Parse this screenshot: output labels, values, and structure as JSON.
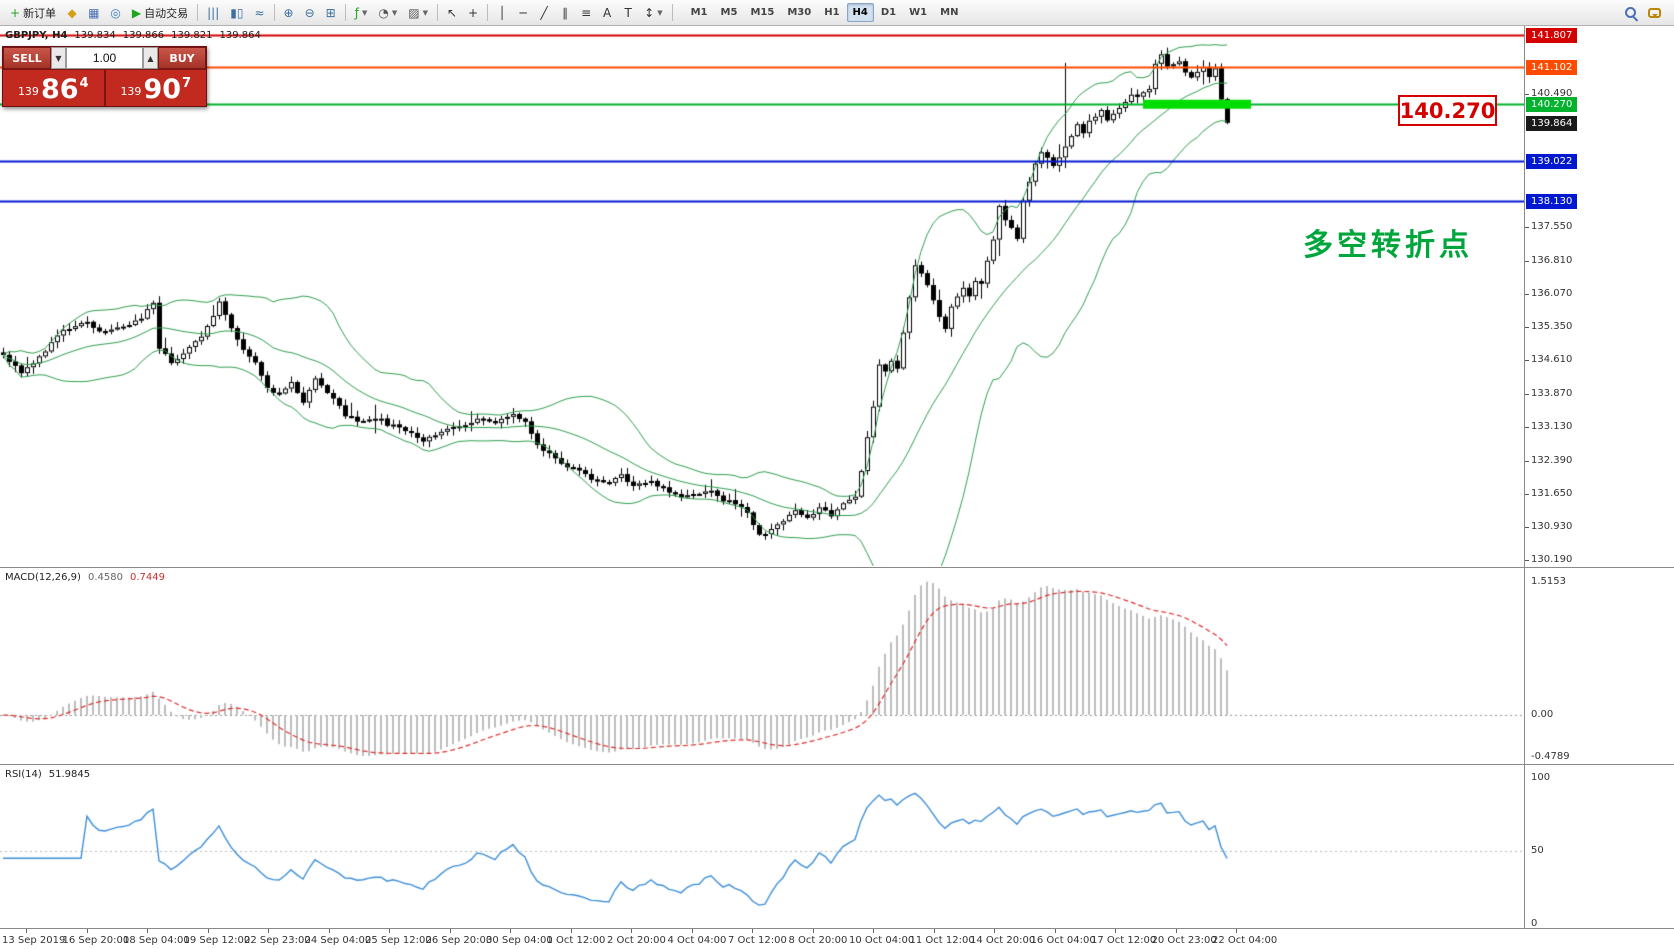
{
  "toolbar": {
    "items": [
      {
        "name": "new-order-button",
        "label": "新订单",
        "glyph": "+",
        "glyph_color": "#1fa51f"
      },
      {
        "name": "profile-icon",
        "glyph": "◆",
        "glyph_color": "#d4a017"
      },
      {
        "name": "charts-grid-icon",
        "glyph": "▦",
        "glyph_color": "#4a6fb5"
      },
      {
        "name": "quotes-icon",
        "glyph": "◎",
        "glyph_color": "#3a7ebf"
      },
      {
        "name": "autotrading-button",
        "label": "自动交易",
        "glyph": "▶",
        "glyph_color": "#1fa51f"
      },
      {
        "sep": true
      },
      {
        "name": "bar-chart-icon",
        "glyph": "|||",
        "glyph_color": "#3a6f9f"
      },
      {
        "name": "candlestick-chart-icon",
        "glyph": "▮▯",
        "glyph_color": "#3a6f9f"
      },
      {
        "name": "line-chart-icon",
        "glyph": "≈",
        "glyph_color": "#3a6f9f"
      },
      {
        "sep": true
      },
      {
        "name": "zoom-in-icon",
        "glyph": "⊕",
        "glyph_color": "#3a6f9f"
      },
      {
        "name": "zoom-out-icon",
        "glyph": "⊖",
        "glyph_color": "#3a6f9f"
      },
      {
        "name": "tile-windows-icon",
        "glyph": "⊞",
        "glyph_color": "#3a6f9f"
      },
      {
        "sep": true
      },
      {
        "name": "indicators-button",
        "glyph": "ƒ",
        "glyph_color": "#1fa51f",
        "caret": true
      },
      {
        "name": "periods-button",
        "glyph": "◔",
        "glyph_color": "#555555",
        "caret": true
      },
      {
        "name": "templates-button",
        "glyph": "▨",
        "glyph_color": "#555555",
        "caret": true
      },
      {
        "sep": true
      },
      {
        "name": "cursor-icon",
        "glyph": "↖",
        "glyph_color": "#333333"
      },
      {
        "name": "crosshair-icon",
        "glyph": "+",
        "glyph_color": "#333333"
      },
      {
        "sep": true
      },
      {
        "name": "vertical-line-icon",
        "glyph": "│",
        "glyph_color": "#333333"
      },
      {
        "name": "horizontal-line-icon",
        "glyph": "─",
        "glyph_color": "#333333"
      },
      {
        "name": "trendline-icon",
        "glyph": "╱",
        "glyph_color": "#333333"
      },
      {
        "name": "channel-icon",
        "glyph": "∥",
        "glyph_color": "#333333"
      },
      {
        "name": "fibonacci-icon",
        "glyph": "≡",
        "glyph_color": "#333333"
      },
      {
        "name": "text-icon",
        "glyph": "A",
        "glyph_color": "#333333"
      },
      {
        "name": "label-icon",
        "glyph": "T",
        "glyph_color": "#333333"
      },
      {
        "name": "arrows-icon",
        "glyph": "↕",
        "glyph_color": "#333333",
        "caret": true
      },
      {
        "sep": true
      }
    ],
    "timeframes": [
      "M1",
      "M5",
      "M15",
      "M30",
      "H1",
      "H4",
      "D1",
      "W1",
      "MN"
    ],
    "active_timeframe": "H4"
  },
  "chart_header": {
    "symbol_period": "GBPJPY, H4",
    "open": "139.834",
    "high": "139.866",
    "low": "139.821",
    "close": "139.864"
  },
  "trade_panel": {
    "sell_label": "SELL",
    "buy_label": "BUY",
    "volume": "1.00",
    "volume_down_glyph": "▼",
    "volume_up_glyph": "▲",
    "sell_price_int": "139",
    "sell_price_main": "86",
    "sell_price_sup": "4",
    "buy_price_int": "139",
    "buy_price_main": "90",
    "buy_price_sup": "7"
  },
  "annotations": {
    "price_callout": "140.270",
    "turning_point": "多空转折点"
  },
  "price_scale": {
    "grid_labels": [
      "140.490",
      "137.550",
      "136.810",
      "136.070",
      "135.350",
      "134.610",
      "133.870",
      "133.130",
      "132.390",
      "131.650",
      "130.930",
      "130.190"
    ],
    "badges": [
      {
        "value": "141.807",
        "bg": "#d40000"
      },
      {
        "value": "141.102",
        "bg": "#ff4a00"
      },
      {
        "value": "140.270",
        "bg": "#00b22d"
      },
      {
        "value": "139.864",
        "bg": "#1a1a1a"
      },
      {
        "value": "139.022",
        "bg": "#0018cf"
      },
      {
        "value": "138.130",
        "bg": "#0018cf"
      }
    ]
  },
  "indicators": {
    "macd": {
      "title": "MACD(12,26,9)",
      "value_main": "0.4580",
      "value_signal": "0.7449",
      "scale": [
        {
          "label": "1.5153",
          "v": 1.5153
        },
        {
          "label": "0.00",
          "v": 0
        },
        {
          "label": "-0.4789",
          "v": -0.4789
        }
      ]
    },
    "rsi": {
      "title": "RSI(14)",
      "value": "51.9845",
      "scale": [
        {
          "label": "100",
          "v": 100
        },
        {
          "label": "50",
          "v": 50
        },
        {
          "label": "0",
          "v": 0
        }
      ]
    }
  },
  "time_axis": [
    "13 Sep 2019",
    "16 Sep 20:00",
    "18 Sep 04:00",
    "19 Sep 12:00",
    "22 Sep 23:00",
    "24 Sep 04:00",
    "25 Sep 12:00",
    "26 Sep 20:00",
    "30 Sep 04:00",
    "1 Oct 12:00",
    "2 Oct 20:00",
    "4 Oct 04:00",
    "7 Oct 12:00",
    "8 Oct 20:00",
    "10 Oct 04:00",
    "11 Oct 12:00",
    "14 Oct 20:00",
    "16 Oct 04:00",
    "17 Oct 12:00",
    "20 Oct 23:00",
    "22 Oct 04:00"
  ],
  "chart_data": {
    "type": "candlestick",
    "symbol": "GBPJPY",
    "timeframe": "H4",
    "num_candles": 205,
    "last_close": 139.864,
    "ylim": [
      130.06,
      142.0
    ],
    "long_upper_wick_candle": 177,
    "price_waypoints": [
      [
        0,
        134.75
      ],
      [
        3,
        134.35
      ],
      [
        6,
        134.7
      ],
      [
        10,
        135.25
      ],
      [
        14,
        135.45
      ],
      [
        17,
        135.2
      ],
      [
        20,
        135.35
      ],
      [
        23,
        135.55
      ],
      [
        25,
        135.85
      ],
      [
        26,
        134.9
      ],
      [
        28,
        134.55
      ],
      [
        30,
        134.8
      ],
      [
        33,
        135.1
      ],
      [
        35,
        135.6
      ],
      [
        36,
        135.9
      ],
      [
        38,
        135.3
      ],
      [
        40,
        134.8
      ],
      [
        42,
        134.6
      ],
      [
        44,
        134.0
      ],
      [
        46,
        133.85
      ],
      [
        48,
        134.1
      ],
      [
        50,
        133.7
      ],
      [
        52,
        134.25
      ],
      [
        54,
        133.9
      ],
      [
        57,
        133.4
      ],
      [
        59,
        133.25
      ],
      [
        62,
        133.35
      ],
      [
        64,
        133.2
      ],
      [
        67,
        133.05
      ],
      [
        70,
        132.85
      ],
      [
        73,
        133.05
      ],
      [
        76,
        133.15
      ],
      [
        79,
        133.3
      ],
      [
        82,
        133.2
      ],
      [
        85,
        133.45
      ],
      [
        87,
        133.25
      ],
      [
        89,
        132.7
      ],
      [
        92,
        132.45
      ],
      [
        95,
        132.2
      ],
      [
        98,
        132.0
      ],
      [
        101,
        131.9
      ],
      [
        103,
        132.05
      ],
      [
        105,
        131.85
      ],
      [
        108,
        131.95
      ],
      [
        111,
        131.7
      ],
      [
        113,
        131.6
      ],
      [
        116,
        131.65
      ],
      [
        118,
        131.75
      ],
      [
        120,
        131.5
      ],
      [
        122,
        131.45
      ],
      [
        124,
        131.2
      ],
      [
        126,
        130.72
      ],
      [
        128,
        130.9
      ],
      [
        130,
        131.05
      ],
      [
        132,
        131.25
      ],
      [
        134,
        131.1
      ],
      [
        136,
        131.35
      ],
      [
        138,
        131.2
      ],
      [
        140,
        131.45
      ],
      [
        142,
        131.55
      ],
      [
        143,
        132.2
      ],
      [
        144,
        132.9
      ],
      [
        145,
        133.6
      ],
      [
        146,
        134.5
      ],
      [
        147,
        134.35
      ],
      [
        148,
        134.6
      ],
      [
        149,
        134.45
      ],
      [
        150,
        135.2
      ],
      [
        151,
        136.0
      ],
      [
        152,
        136.75
      ],
      [
        153,
        136.5
      ],
      [
        154,
        136.25
      ],
      [
        155,
        135.9
      ],
      [
        156,
        135.55
      ],
      [
        157,
        135.3
      ],
      [
        158,
        135.75
      ],
      [
        160,
        136.2
      ],
      [
        161,
        136.0
      ],
      [
        162,
        136.4
      ],
      [
        163,
        136.3
      ],
      [
        165,
        137.3
      ],
      [
        166,
        138.0
      ],
      [
        167,
        137.75
      ],
      [
        168,
        137.5
      ],
      [
        169,
        137.3
      ],
      [
        170,
        138.15
      ],
      [
        171,
        138.55
      ],
      [
        172,
        138.95
      ],
      [
        173,
        139.25
      ],
      [
        174,
        139.1
      ],
      [
        175,
        138.9
      ],
      [
        178,
        139.6
      ],
      [
        179,
        139.85
      ],
      [
        180,
        139.65
      ],
      [
        181,
        139.9
      ],
      [
        183,
        140.1
      ],
      [
        184,
        139.9
      ],
      [
        186,
        140.2
      ],
      [
        187,
        140.3
      ],
      [
        188,
        140.5
      ],
      [
        189,
        140.4
      ],
      [
        191,
        140.6
      ],
      [
        192,
        141.15
      ],
      [
        193,
        141.35
      ],
      [
        194,
        141.1
      ],
      [
        196,
        141.25
      ],
      [
        197,
        141.0
      ],
      [
        198,
        140.9
      ],
      [
        200,
        141.1
      ],
      [
        201,
        140.85
      ],
      [
        202,
        141.05
      ],
      [
        203,
        140.35
      ],
      [
        204,
        139.864
      ]
    ],
    "overlays": {
      "bollinger": {
        "period": 20,
        "deviation": 2,
        "color": "#2f9e4f"
      },
      "hlines": [
        {
          "price": 141.807,
          "color": "#d40000",
          "width": 2
        },
        {
          "price": 141.102,
          "color": "#ff4a00",
          "width": 2
        },
        {
          "price": 140.27,
          "color": "#00b22d",
          "width": 2
        },
        {
          "price": 139.022,
          "color": "#0018cf",
          "width": 2
        },
        {
          "price": 138.13,
          "color": "#0018cf",
          "width": 2
        }
      ],
      "green_segment": {
        "price": 140.27,
        "from": 190,
        "to": 208,
        "color": "#00dd00",
        "height": 9
      }
    },
    "macd_params": {
      "fast": 12,
      "slow": 26,
      "signal": 9
    },
    "rsi_params": {
      "period": 14
    }
  }
}
